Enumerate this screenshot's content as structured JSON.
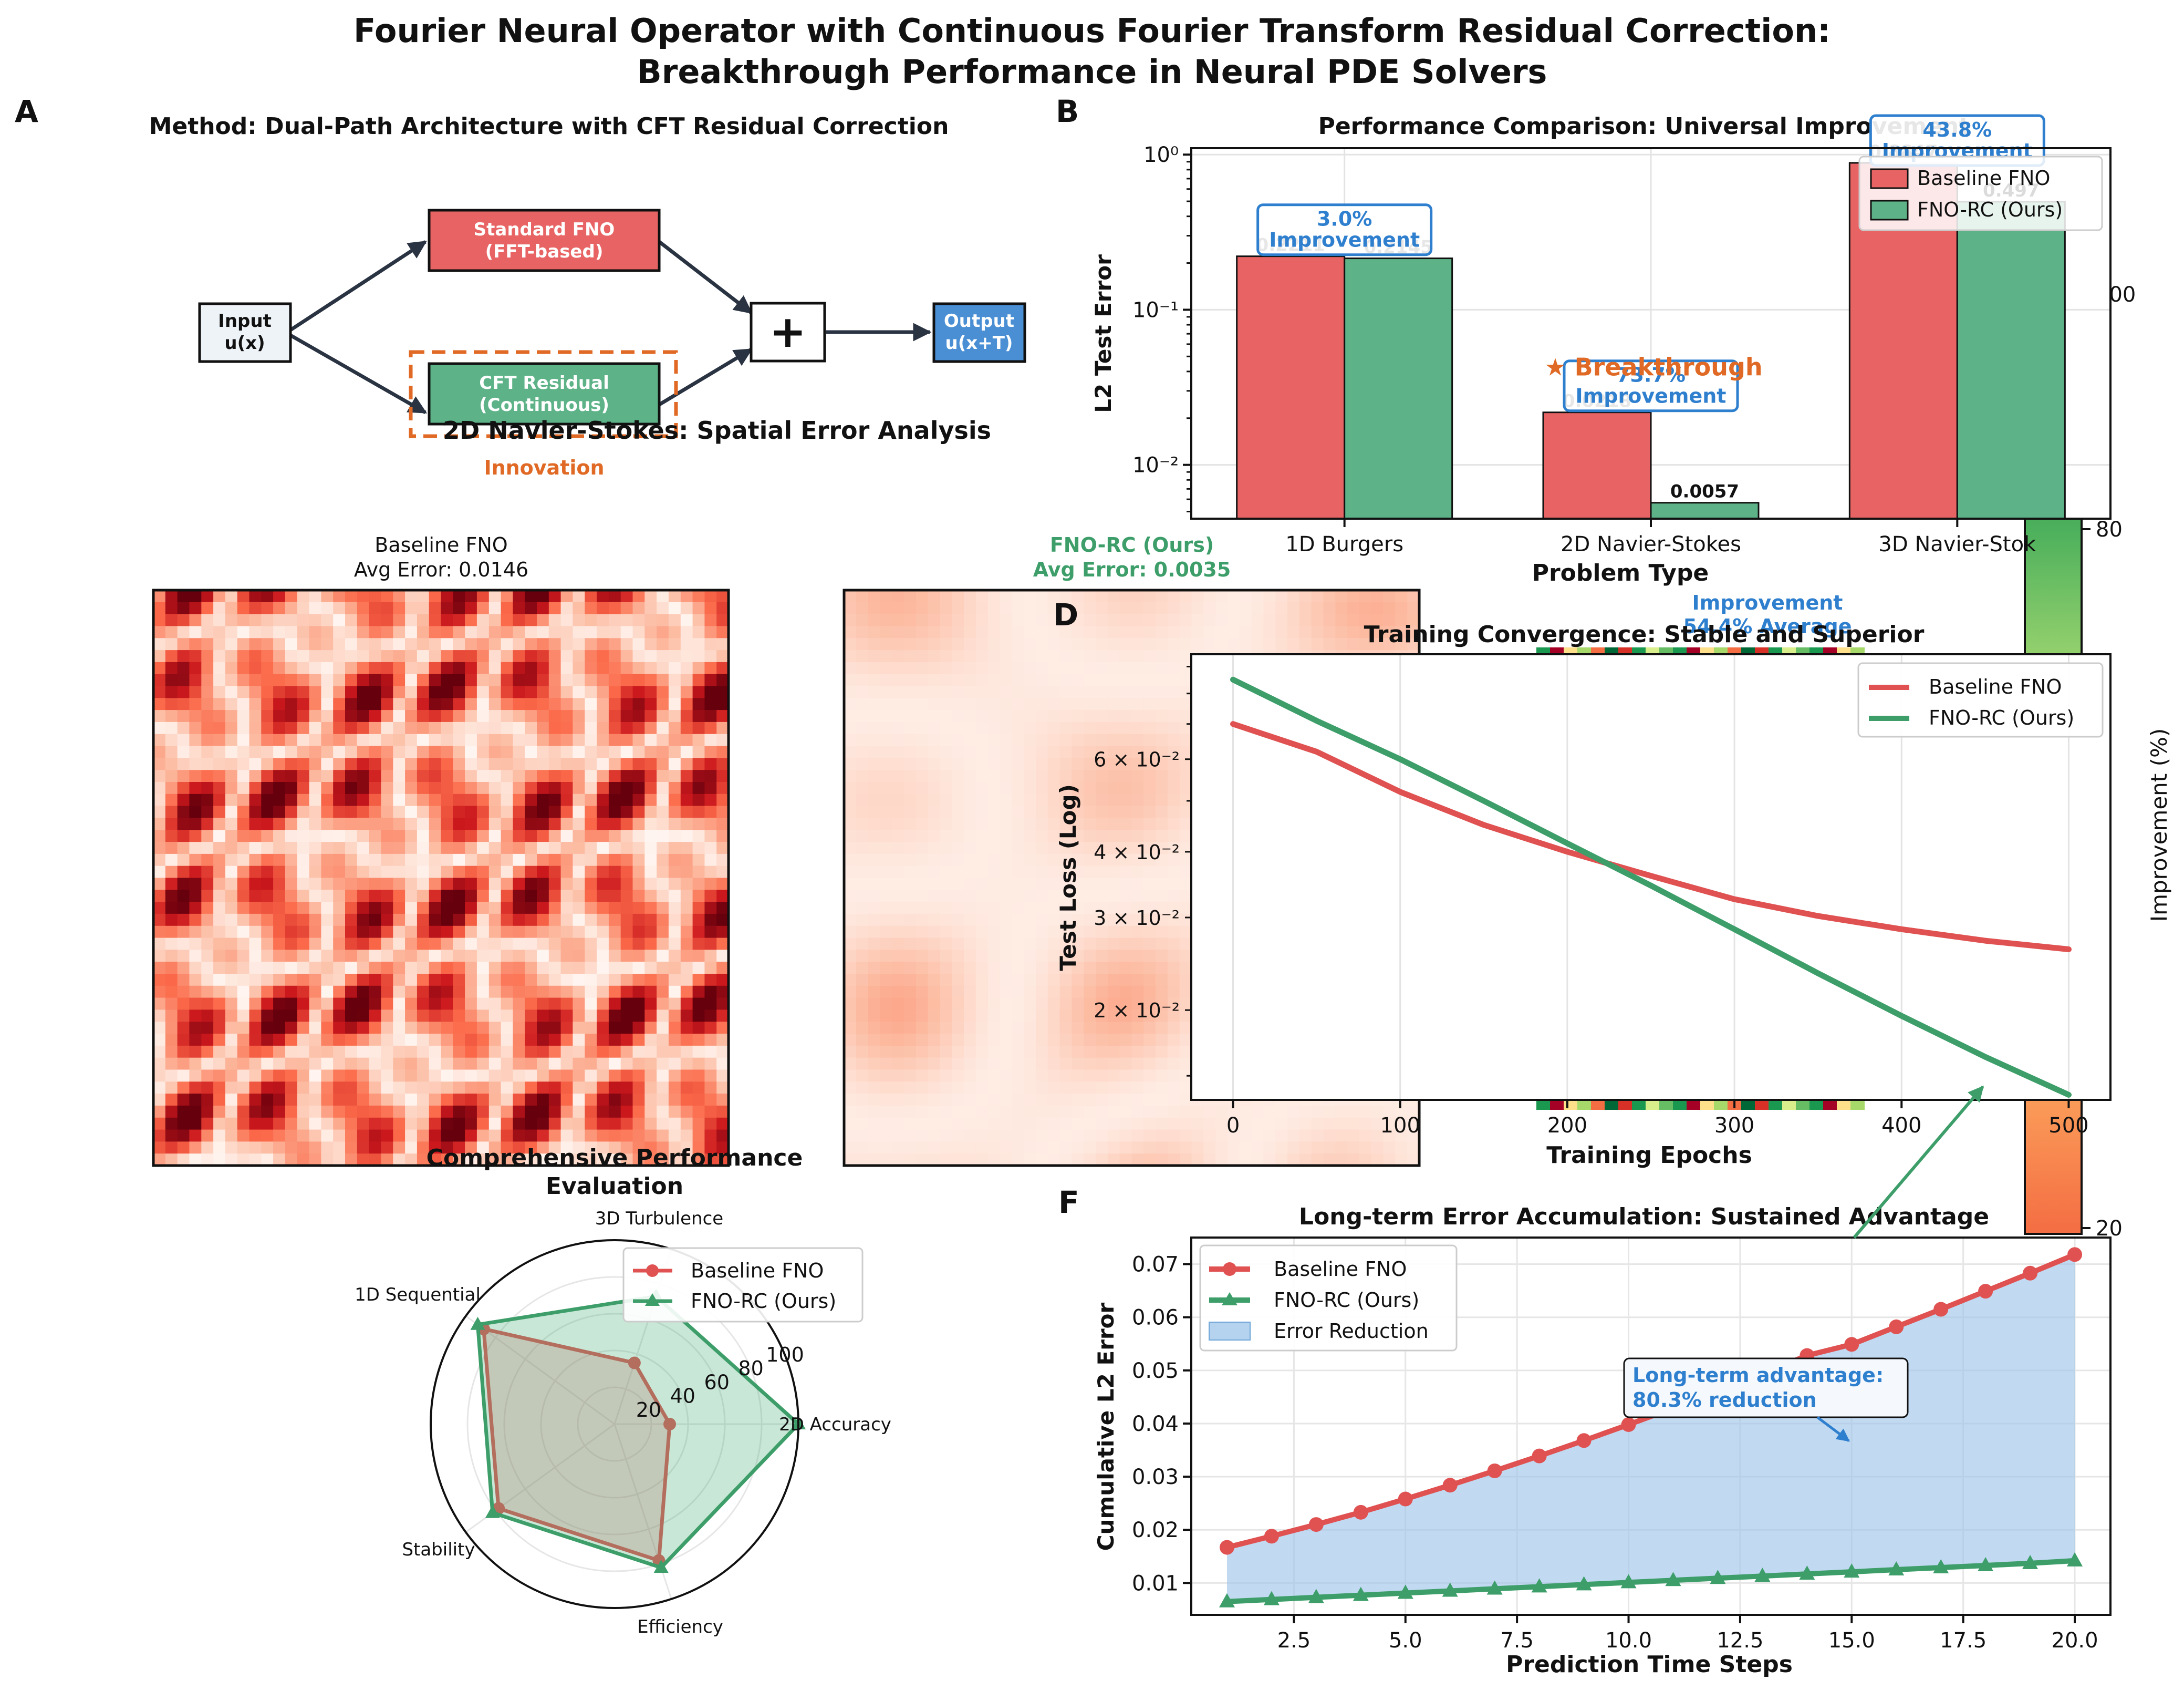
{
  "title_line1": "Fourier Neural Operator with Continuous Fourier Transform Residual Correction:",
  "title_line2": "Breakthrough Performance in Neural PDE Solvers",
  "panel_letters": {
    "a": "A",
    "b": "B",
    "d": "D",
    "f": "F"
  },
  "colors": {
    "baseline": "#e05252",
    "ours": "#3d9e6a",
    "accent_blue": "#2f7fcf",
    "accent_orange": "#e06a25",
    "dark": "#2a3342",
    "fill_blue": "#9cc3e8"
  },
  "panel_a": {
    "title": "Method: Dual-Path Architecture with CFT Residual Correction",
    "input_l1": "Input",
    "input_l2": "u(x)",
    "fno_l1": "Standard FNO",
    "fno_l2": "(FFT-based)",
    "cft_l1": "CFT Residual",
    "cft_l2": "(Continuous)",
    "plus": "+",
    "output_l1": "Output",
    "output_l2": "u(x+T)",
    "innovation": "Innovation"
  },
  "panel_c": {
    "title": "2D Navier-Stokes: Spatial Error Analysis",
    "left_title": "Baseline FNO",
    "left_sub": "Avg Error: 0.0146",
    "right_title": "FNO-RC (Ours)",
    "right_sub": "Avg Error: 0.0035"
  },
  "panel_b": {
    "chart_data": {
      "type": "bar",
      "title": "Performance Comparison: Universal Improvement",
      "xlabel": "Problem Type",
      "ylabel": "L2 Test Error",
      "yscale": "log",
      "ylim": [
        0.0045,
        1.1
      ],
      "categories": [
        "1D Burgers",
        "2D Navier-Stokes",
        "3D Navier-Stok"
      ],
      "series": [
        {
          "name": "Baseline FNO",
          "values": [
            0.2211,
            0.0218,
            0.8847
          ],
          "labels": [
            "0.2211",
            "0.0218",
            "0.8847"
          ]
        },
        {
          "name": "FNO-RC (Ours)",
          "values": [
            0.2145,
            0.0057,
            0.497
          ],
          "labels": [
            "0.2145",
            "0.0057",
            "0.497"
          ]
        }
      ],
      "improvements": [
        "3.0%",
        "73.7%",
        "43.8%"
      ],
      "improvement_word": "Improvement",
      "breakthrough": "★ Breakthrough",
      "legend": "top-right",
      "grid": true
    }
  },
  "colorbar": {
    "label": "Improvement (%)",
    "ticks": [
      "100",
      "80",
      "20"
    ],
    "side_label_l1": "Improvement",
    "side_label_l2": "54.4% Average"
  },
  "panel_d": {
    "chart_data": {
      "type": "line",
      "title": "Training Convergence: Stable and Superior",
      "xlabel": "Training Epochs",
      "ylabel": "Test Loss (Log)",
      "yscale": "log",
      "xlim": [
        -25,
        525
      ],
      "ylim": [
        0.0135,
        0.095
      ],
      "xticks": [
        "0",
        "100",
        "200",
        "300",
        "400",
        "500"
      ],
      "yticks": [
        "6 × 10⁻²",
        "4 × 10⁻²",
        "3 × 10⁻²",
        "2 × 10⁻²"
      ],
      "x": [
        0,
        50,
        100,
        150,
        200,
        250,
        300,
        350,
        400,
        450,
        500
      ],
      "series": [
        {
          "name": "Baseline FNO",
          "values": [
            0.07,
            0.062,
            0.052,
            0.045,
            0.04,
            0.036,
            0.0325,
            0.0302,
            0.0285,
            0.0271,
            0.0261
          ]
        },
        {
          "name": "FNO-RC (Ours)",
          "values": [
            0.085,
            0.071,
            0.06,
            0.05,
            0.0415,
            0.0345,
            0.0285,
            0.0235,
            0.0195,
            0.0163,
            0.0138
          ]
        }
      ],
      "legend": "top-right",
      "grid": true
    }
  },
  "panel_e": {
    "chart_data": {
      "type": "radar",
      "title_l1": "Comprehensive Performance",
      "title_l2": "Evaluation",
      "axes": [
        "2D Accuracy",
        "3D Turbulence",
        "1D Sequential",
        "Stability",
        "Efficiency"
      ],
      "rticks": [
        "20",
        "40",
        "60",
        "80",
        "100"
      ],
      "rmax": 100,
      "series": [
        {
          "name": "Baseline FNO",
          "values": [
            30,
            35,
            88,
            78,
            78
          ]
        },
        {
          "name": "FNO-RC (Ours)",
          "values": [
            100,
            73,
            92,
            82,
            82
          ]
        }
      ],
      "legend": "top-right"
    }
  },
  "panel_f": {
    "chart_data": {
      "type": "line",
      "title": "Long-term Error Accumulation: Sustained Advantage",
      "xlabel": "Prediction Time Steps",
      "ylabel": "Cumulative L2 Error",
      "xlim": [
        0.2,
        20.8
      ],
      "ylim": [
        0.004,
        0.075
      ],
      "xticks": [
        2.5,
        5.0,
        7.5,
        10.0,
        12.5,
        15.0,
        17.5,
        20.0
      ],
      "yticks": [
        0.01,
        0.02,
        0.03,
        0.04,
        0.05,
        0.06,
        0.07
      ],
      "x": [
        1,
        2,
        3,
        4,
        5,
        6,
        7,
        8,
        9,
        10,
        11,
        12,
        13,
        14,
        15,
        16,
        17,
        18,
        19,
        20
      ],
      "series": [
        {
          "name": "Baseline FNO",
          "values": [
            0.0167,
            0.0188,
            0.021,
            0.0233,
            0.0258,
            0.0284,
            0.0311,
            0.0339,
            0.0368,
            0.0398,
            0.0429,
            0.0461,
            0.0494,
            0.0528,
            0.0549,
            0.0582,
            0.0615,
            0.0649,
            0.0683,
            0.0718
          ]
        },
        {
          "name": "FNO-RC (Ours)",
          "values": [
            0.0065,
            0.0069,
            0.0073,
            0.0077,
            0.0081,
            0.0085,
            0.0089,
            0.0093,
            0.0097,
            0.0101,
            0.0105,
            0.0109,
            0.0113,
            0.0117,
            0.0121,
            0.0125,
            0.0129,
            0.0133,
            0.0137,
            0.0142
          ]
        }
      ],
      "fill_label": "Error Reduction",
      "annotation_l1": "Long-term advantage:",
      "annotation_l2": "80.3% reduction",
      "legend": "top-left",
      "grid": true
    }
  }
}
